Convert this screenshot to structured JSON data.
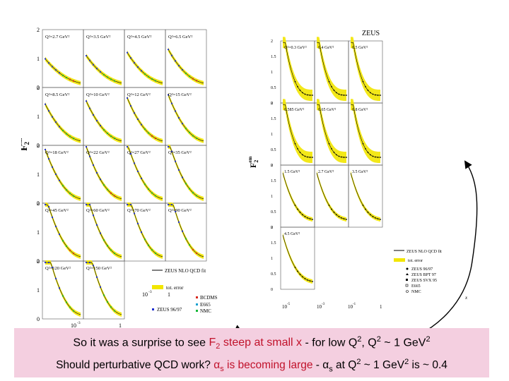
{
  "chart_data": [
    {
      "type": "scatter",
      "title": "",
      "ylabel_main": "F",
      "ylabel_sub": "2",
      "ylabel_sup": "em",
      "xlabel": "x",
      "ylim": [
        0,
        2
      ],
      "y_ticks": [
        "0",
        "1",
        "2"
      ],
      "x_ticks": [
        "10",
        "1",
        "10",
        "1"
      ],
      "x_tick_exp": "-3",
      "panels": [
        "Q²=2.7 GeV²",
        "Q²=3.5 GeV²",
        "Q²=4.5 GeV²",
        "Q²=6.5 GeV²",
        "Q²=8.5 GeV²",
        "Q²=10 GeV²",
        "Q²=12 GeV²",
        "Q²=15 GeV²",
        "Q²=18 GeV²",
        "Q²=22 GeV²",
        "Q²=27 GeV²",
        "Q²=35 GeV²",
        "Q²=45 GeV²",
        "Q²=60 GeV²",
        "Q²=70 GeV²",
        "Q²=90 GeV²",
        "Q²=120 GeV²",
        "Q²=150 GeV²"
      ],
      "legend": [
        "ZEUS NLO QCD fit",
        "tot. error",
        "ZEUS 96/97",
        "BCDMS",
        "E665",
        "NMC"
      ],
      "legend_colors": [
        "#000000",
        "#f2e600",
        "#1f2fd0",
        "#d8281e",
        "#18a0d0",
        "#19b83a"
      ]
    },
    {
      "type": "scatter",
      "title": "ZEUS",
      "ylabel_main": "F",
      "ylabel_sub": "2",
      "ylabel_sup": "em",
      "xlabel": "x",
      "ylim": [
        0,
        2
      ],
      "y_ticks": [
        "0",
        "0.5",
        "1",
        "1.5",
        "2"
      ],
      "x_ticks": [
        "10",
        "10",
        "10",
        "1"
      ],
      "x_tick_exps": [
        "-5",
        "-3",
        "-1"
      ],
      "panels": [
        "Q²=0.3 GeV²",
        "0.4 GeV²",
        "0.5 GeV²",
        "0.585 GeV²",
        "0.65 GeV²",
        "0.8 GeV²",
        "1.5 GeV²",
        "2.7 GeV²",
        "3.5 GeV²",
        "4.5 GeV²"
      ],
      "legend": [
        "ZEUS NLO QCD fit",
        "tot. error",
        "ZEUS 96/97",
        "ZEUS BPT 97",
        "ZEUS SVX 95",
        "E665",
        "NMC"
      ]
    }
  ],
  "caption": {
    "line1": {
      "pre": "So it was a surprise to see ",
      "f": "F",
      "f_sub": "2",
      "mid": " steep at small x",
      "post": "  - for low Q",
      "q1_sup": "2",
      "post2": ", Q",
      "q2_sup": "2",
      "post3": " ~ 1 GeV",
      "gev_sup": "2"
    },
    "line2": {
      "pre": "Should perturbative QCD work? ",
      "alpha": "α",
      "alpha_sub": "s",
      "mid": " is becoming large",
      "post": "  - α",
      "alpha2_sub": "s",
      "post2": " at Q",
      "q_sup": "2",
      "post3": " ~ 1 GeV",
      "gev_sup": "2",
      "post4": " is ~ 0.4"
    }
  },
  "colors": {
    "caption_bg": "#f4cfe0",
    "caption_red": "#c1122b",
    "band": "#f2e600"
  }
}
